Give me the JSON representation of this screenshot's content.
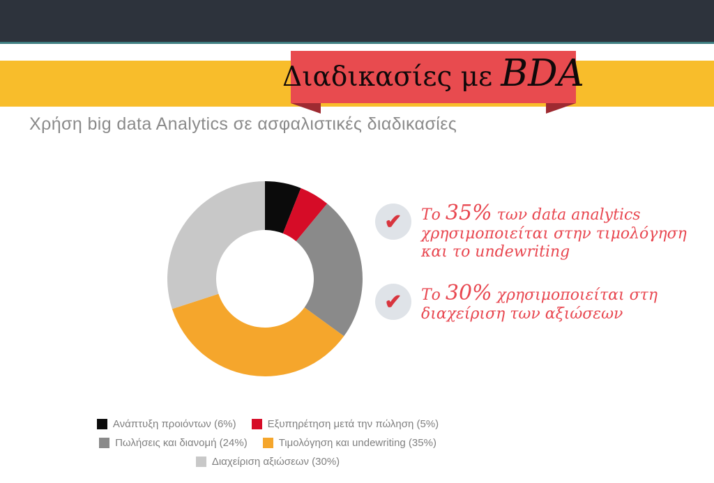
{
  "slide": {
    "title_main": "Διαδικασίες με",
    "title_accent": "BDA",
    "subtitle": "Χρήση big data Analytics σε ασφαλιστικές διαδικασίες"
  },
  "bullets": [
    {
      "pre": "Το",
      "pct": "35%",
      "rest": "των data analytics χρησιμοποιείται στην τιμολόγηση και το undewriting"
    },
    {
      "pre": "Το",
      "pct": "30%",
      "rest": "χρησιμοποιείται στη διαχείριση των αξιώσεων"
    }
  ],
  "check_glyph": "✔",
  "chart_data": {
    "type": "pie",
    "subtype": "donut",
    "title": "Χρήση big data Analytics σε ασφαλιστικές διαδικασίες",
    "categories": [
      "Ανάπτυξη προιόντων",
      "Εξυπηρέτηση μετά την πώληση",
      "Πωλήσεις και διανομή",
      "Τιμολόγηση και undewriting",
      "Διαχείριση αξιώσεων"
    ],
    "values": [
      6,
      5,
      24,
      35,
      30
    ],
    "unit": "%",
    "colors": [
      "#0b0b0b",
      "#d60c27",
      "#8a8a8a",
      "#f5a62c",
      "#c8c8c8"
    ],
    "start_angle_deg": 0,
    "clockwise": true,
    "inner_radius_ratio": 0.5,
    "legend_position": "bottom"
  },
  "legend": {
    "items": [
      {
        "label": "Ανάπτυξη προιόντων (6%)",
        "color": "#0b0b0b"
      },
      {
        "label": "Εξυπηρέτηση μετά την πώληση (5%)",
        "color": "#d60c27"
      },
      {
        "label": "Πωλήσεις και διανομή (24%)",
        "color": "#8a8a8a"
      },
      {
        "label": "Τιμολόγηση και undewriting (35%)",
        "color": "#f5a62c"
      },
      {
        "label": "Διαχείριση αξιώσεων (30%)",
        "color": "#c8c8c8"
      }
    ],
    "rows": [
      [
        0,
        1
      ],
      [
        2,
        3
      ],
      [
        4
      ]
    ]
  },
  "colors": {
    "topbar": "#2d333c",
    "teal_line": "#3f7e81",
    "yellow_band": "#f8bd2b",
    "ribbon_red": "#e84b4f",
    "ribbon_fold": "#9e2a31",
    "handwriting_red": "#e84750",
    "check_circle_bg": "#dfe3e8",
    "check_red": "#d8353e",
    "subtitle_gray": "#8a8a8a",
    "legend_text_gray": "#7f7f7f"
  }
}
